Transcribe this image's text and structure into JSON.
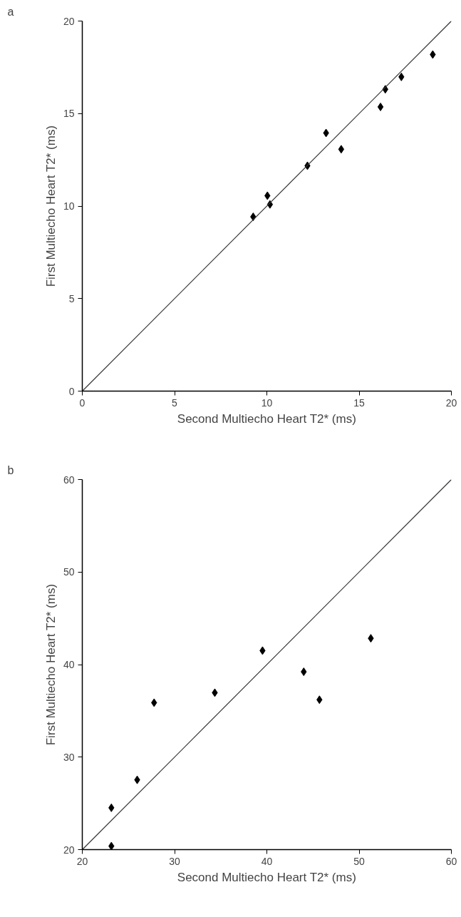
{
  "chart_data": [
    {
      "type": "scatter",
      "title": "a",
      "xlabel": "Second Multiecho Heart T2* (ms)",
      "ylabel": "First Multiecho Heart T2* (ms)",
      "xlim": [
        0,
        20
      ],
      "ylim": [
        0,
        20
      ],
      "xticks": [
        0,
        5,
        10,
        15,
        20
      ],
      "yticks": [
        0,
        5,
        10,
        15,
        20
      ],
      "grid": false,
      "series": [
        {
          "marker": "diamond",
          "color": "#000000",
          "x": [
            9.26,
            10.03,
            10.17,
            12.2,
            13.21,
            14.03,
            16.16,
            16.42,
            17.29,
            18.99
          ],
          "values": [
            9.42,
            10.56,
            10.09,
            12.18,
            13.95,
            13.07,
            15.36,
            16.31,
            16.98,
            18.19
          ]
        },
        {
          "type": "line",
          "color": "#333333",
          "line_style": "solid",
          "x": [
            0,
            20
          ],
          "values": [
            0,
            20
          ]
        }
      ]
    },
    {
      "type": "scatter",
      "title": "b",
      "xlabel": "Second Multiecho Heart T2* (ms)",
      "ylabel": "First Multiecho Heart T2* (ms)",
      "xlim": [
        20,
        60
      ],
      "ylim": [
        20,
        60
      ],
      "xticks": [
        20,
        30,
        40,
        50,
        60
      ],
      "yticks": [
        20,
        30,
        40,
        50,
        60
      ],
      "grid": false,
      "series": [
        {
          "marker": "diamond",
          "color": "#000000",
          "x": [
            23.15,
            23.15,
            25.95,
            27.78,
            34.36,
            39.53,
            44.0,
            45.7,
            51.27
          ],
          "values": [
            24.52,
            20.38,
            27.54,
            35.88,
            36.96,
            41.51,
            39.22,
            36.2,
            42.84
          ]
        },
        {
          "type": "line",
          "color": "#333333",
          "line_style": "solid",
          "x": [
            20,
            60
          ],
          "values": [
            20,
            60
          ]
        }
      ]
    }
  ]
}
